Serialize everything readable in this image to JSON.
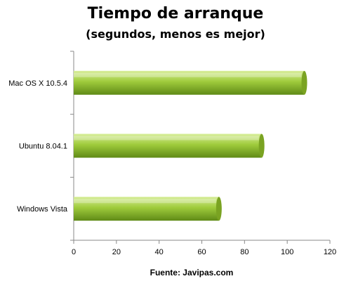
{
  "chart_data": {
    "type": "bar",
    "orientation": "horizontal",
    "title": "Tiempo de arranque",
    "subtitle": "(segundos, menos es mejor)",
    "categories": [
      "Mac OS X 10.5.4",
      "Ubuntu 8.04.1",
      "Windows Vista"
    ],
    "values": [
      108,
      88,
      68
    ],
    "xlabel": "",
    "ylabel": "",
    "xlim": [
      0,
      120
    ],
    "xticks": [
      0,
      20,
      40,
      60,
      80,
      100,
      120
    ],
    "grid": false,
    "legend": "none",
    "source": "Fuente: Javipas.com",
    "colors": {
      "bar_light": "#d8ee9a",
      "bar_mid": "#9fcb3c",
      "bar_dark": "#5f8a16",
      "bar_end": "#7aa322",
      "axis": "#888888"
    }
  }
}
